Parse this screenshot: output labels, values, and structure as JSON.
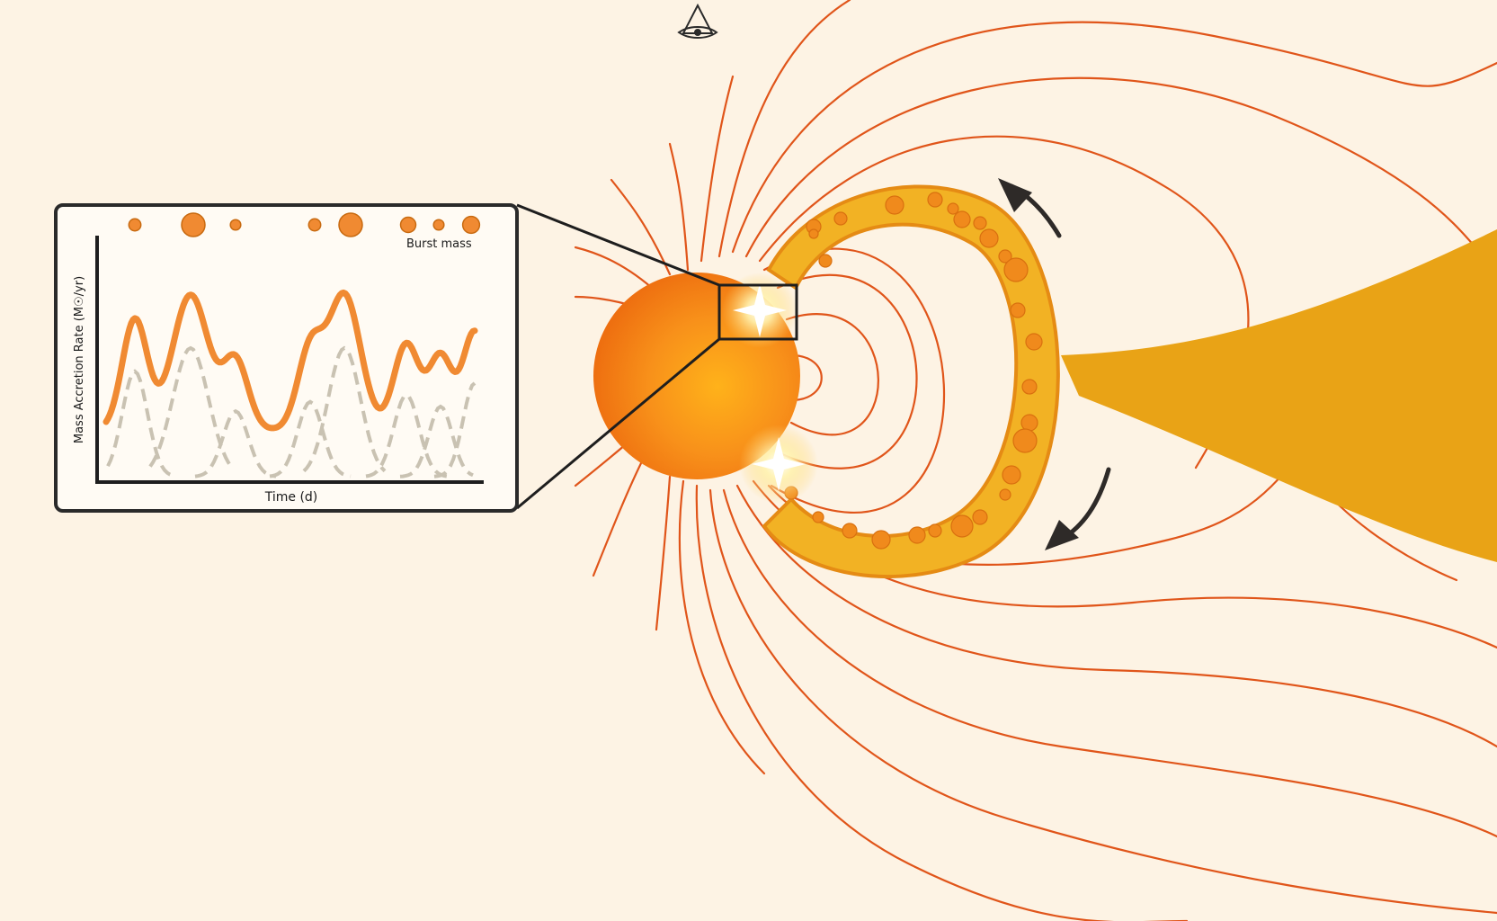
{
  "colors": {
    "background": "#fdf3e4",
    "field_line": "#e0551a",
    "star": "#f08a10",
    "ring": "#f2b224",
    "ring_edge": "#e58b14",
    "clump": "#f08a1c",
    "stream": "#e9a316",
    "arrow": "#2e2a28",
    "curve_total": "#f08a32",
    "curve_component": "#c9c2b2",
    "frame": "#2a2a2a"
  },
  "icons": {
    "logo": "eye-in-triangle-logo",
    "flares": "flare-icon",
    "rotation": "rotation-arrow-icon"
  },
  "inset": {
    "x_label": "Time (d)",
    "y_label": "Mass Accretion Rate (M☉/yr)",
    "legend_label": "Burst mass",
    "burst_masses": [
      0.3,
      1.0,
      0.2,
      0.3,
      1.0,
      0.5,
      0.2,
      0.6
    ]
  }
}
